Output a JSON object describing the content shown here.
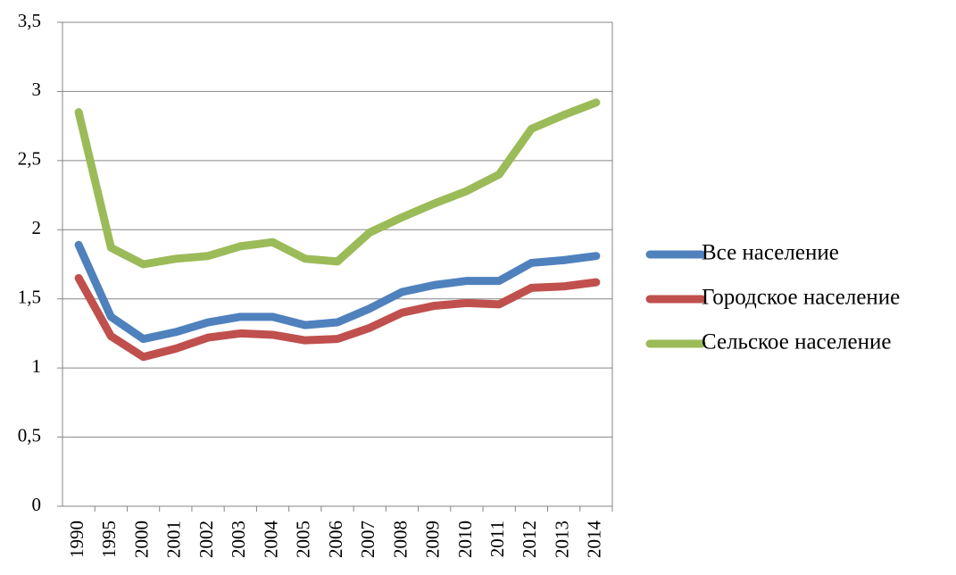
{
  "chart_data": {
    "type": "line",
    "categories": [
      "1990",
      "1995",
      "2000",
      "2001",
      "2002",
      "2003",
      "2004",
      "2005",
      "2006",
      "2007",
      "2008",
      "2009",
      "2010",
      "2011",
      "2012",
      "2013",
      "2014"
    ],
    "series": [
      {
        "name": "Все население",
        "color": "#4f81bd",
        "values": [
          1.89,
          1.37,
          1.21,
          1.26,
          1.33,
          1.37,
          1.37,
          1.31,
          1.33,
          1.43,
          1.55,
          1.6,
          1.63,
          1.63,
          1.76,
          1.78,
          1.81
        ]
      },
      {
        "name": "Городское население",
        "color": "#c0504d",
        "values": [
          1.65,
          1.23,
          1.08,
          1.14,
          1.22,
          1.25,
          1.24,
          1.2,
          1.21,
          1.29,
          1.4,
          1.45,
          1.47,
          1.46,
          1.58,
          1.59,
          1.62
        ]
      },
      {
        "name": "Сельское население",
        "color": "#9bbb59",
        "values": [
          2.85,
          1.87,
          1.75,
          1.79,
          1.81,
          1.88,
          1.91,
          1.79,
          1.77,
          1.98,
          2.09,
          2.19,
          2.28,
          2.4,
          2.73,
          2.83,
          2.92
        ]
      }
    ],
    "ylim": [
      0,
      3.5
    ],
    "yticks": [
      0,
      {
        "value": 0.5,
        "label": "0,5"
      },
      1,
      {
        "value": 1.5,
        "label": "1,5"
      },
      2,
      {
        "value": 2.5,
        "label": "2,5"
      },
      3,
      {
        "value": 3.5,
        "label": "3,5"
      }
    ],
    "grid": true,
    "legend": "right"
  }
}
